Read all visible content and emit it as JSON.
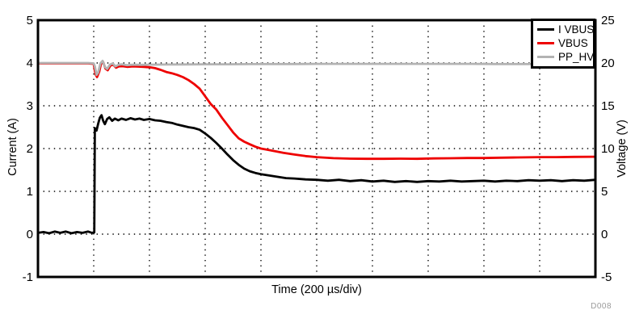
{
  "figure": {
    "watermark": "D008",
    "background": "#ffffff",
    "border_color": "#000000"
  },
  "chart_data": {
    "type": "line",
    "title": "",
    "xlabel": "Time (200 µs/div)",
    "xlim": [
      0,
      10
    ],
    "x_divisions": 10,
    "grid": "dotted",
    "grid_color": "#000000",
    "left_axis": {
      "label": "Current (A)",
      "lim": [
        -1,
        5
      ],
      "ticks": [
        5,
        4,
        3,
        2,
        1,
        0,
        -1
      ]
    },
    "right_axis": {
      "label": "Voltage (V)",
      "lim": [
        -5,
        25
      ],
      "ticks": [
        25,
        20,
        15,
        10,
        5,
        0,
        -5
      ]
    },
    "legend": {
      "position": "top-right",
      "entries": [
        "I VBUS",
        "VBUS",
        "PP_HV"
      ]
    },
    "draw_order": [
      1,
      2,
      0
    ],
    "series": [
      {
        "name": "I VBUS",
        "axis": "left",
        "color": "#000000",
        "points": [
          [
            0,
            0.03
          ],
          [
            0.1,
            0.05
          ],
          [
            0.2,
            0.02
          ],
          [
            0.3,
            0.06
          ],
          [
            0.4,
            0.03
          ],
          [
            0.5,
            0.06
          ],
          [
            0.6,
            0.02
          ],
          [
            0.7,
            0.05
          ],
          [
            0.8,
            0.03
          ],
          [
            0.9,
            0.06
          ],
          [
            0.97,
            0.03
          ],
          [
            1.01,
            0.04
          ],
          [
            1.02,
            2.48
          ],
          [
            1.05,
            2.42
          ],
          [
            1.08,
            2.58
          ],
          [
            1.11,
            2.72
          ],
          [
            1.14,
            2.78
          ],
          [
            1.17,
            2.65
          ],
          [
            1.2,
            2.57
          ],
          [
            1.24,
            2.69
          ],
          [
            1.28,
            2.73
          ],
          [
            1.33,
            2.65
          ],
          [
            1.38,
            2.7
          ],
          [
            1.44,
            2.66
          ],
          [
            1.5,
            2.7
          ],
          [
            1.58,
            2.67
          ],
          [
            1.66,
            2.71
          ],
          [
            1.74,
            2.68
          ],
          [
            1.82,
            2.7
          ],
          [
            1.9,
            2.67
          ],
          [
            2.0,
            2.69
          ],
          [
            2.1,
            2.66
          ],
          [
            2.2,
            2.65
          ],
          [
            2.3,
            2.62
          ],
          [
            2.4,
            2.6
          ],
          [
            2.5,
            2.56
          ],
          [
            2.6,
            2.53
          ],
          [
            2.7,
            2.5
          ],
          [
            2.8,
            2.48
          ],
          [
            2.9,
            2.44
          ],
          [
            3.0,
            2.35
          ],
          [
            3.1,
            2.25
          ],
          [
            3.2,
            2.13
          ],
          [
            3.3,
            2.0
          ],
          [
            3.4,
            1.86
          ],
          [
            3.5,
            1.73
          ],
          [
            3.6,
            1.62
          ],
          [
            3.7,
            1.53
          ],
          [
            3.8,
            1.47
          ],
          [
            3.9,
            1.43
          ],
          [
            4.0,
            1.4
          ],
          [
            4.15,
            1.37
          ],
          [
            4.3,
            1.34
          ],
          [
            4.45,
            1.31
          ],
          [
            4.6,
            1.3
          ],
          [
            4.8,
            1.28
          ],
          [
            5.0,
            1.27
          ],
          [
            5.2,
            1.25
          ],
          [
            5.4,
            1.27
          ],
          [
            5.6,
            1.24
          ],
          [
            5.8,
            1.26
          ],
          [
            6.0,
            1.23
          ],
          [
            6.2,
            1.25
          ],
          [
            6.4,
            1.22
          ],
          [
            6.6,
            1.24
          ],
          [
            6.8,
            1.22
          ],
          [
            7.0,
            1.24
          ],
          [
            7.2,
            1.23
          ],
          [
            7.4,
            1.25
          ],
          [
            7.6,
            1.23
          ],
          [
            7.8,
            1.24
          ],
          [
            8.0,
            1.25
          ],
          [
            8.2,
            1.23
          ],
          [
            8.4,
            1.25
          ],
          [
            8.6,
            1.24
          ],
          [
            8.8,
            1.26
          ],
          [
            9.0,
            1.25
          ],
          [
            9.2,
            1.26
          ],
          [
            9.4,
            1.24
          ],
          [
            9.6,
            1.26
          ],
          [
            9.8,
            1.25
          ],
          [
            10,
            1.27
          ]
        ]
      },
      {
        "name": "VBUS",
        "axis": "right",
        "color": "#ee0000",
        "points": [
          [
            0,
            19.95
          ],
          [
            0.3,
            19.95
          ],
          [
            0.6,
            19.95
          ],
          [
            0.9,
            19.95
          ],
          [
            1.0,
            19.9
          ],
          [
            1.03,
            18.7
          ],
          [
            1.06,
            18.35
          ],
          [
            1.1,
            19.0
          ],
          [
            1.13,
            19.9
          ],
          [
            1.17,
            20.1
          ],
          [
            1.21,
            19.35
          ],
          [
            1.25,
            19.15
          ],
          [
            1.3,
            19.7
          ],
          [
            1.35,
            19.8
          ],
          [
            1.4,
            19.45
          ],
          [
            1.45,
            19.6
          ],
          [
            1.52,
            19.62
          ],
          [
            1.6,
            19.55
          ],
          [
            1.7,
            19.6
          ],
          [
            1.8,
            19.58
          ],
          [
            1.9,
            19.55
          ],
          [
            2.0,
            19.5
          ],
          [
            2.1,
            19.4
          ],
          [
            2.2,
            19.2
          ],
          [
            2.3,
            18.95
          ],
          [
            2.4,
            18.8
          ],
          [
            2.5,
            18.6
          ],
          [
            2.6,
            18.35
          ],
          [
            2.7,
            18.0
          ],
          [
            2.8,
            17.55
          ],
          [
            2.9,
            17.0
          ],
          [
            3.0,
            16.1
          ],
          [
            3.1,
            15.2
          ],
          [
            3.2,
            14.55
          ],
          [
            3.3,
            13.6
          ],
          [
            3.4,
            12.75
          ],
          [
            3.5,
            11.9
          ],
          [
            3.6,
            11.2
          ],
          [
            3.7,
            10.8
          ],
          [
            3.8,
            10.5
          ],
          [
            3.9,
            10.22
          ],
          [
            4.0,
            10.0
          ],
          [
            4.1,
            9.88
          ],
          [
            4.25,
            9.7
          ],
          [
            4.4,
            9.5
          ],
          [
            4.6,
            9.3
          ],
          [
            4.8,
            9.12
          ],
          [
            5.0,
            9.0
          ],
          [
            5.3,
            8.88
          ],
          [
            5.6,
            8.82
          ],
          [
            5.9,
            8.8
          ],
          [
            6.2,
            8.8
          ],
          [
            6.5,
            8.82
          ],
          [
            6.8,
            8.8
          ],
          [
            7.1,
            8.85
          ],
          [
            7.4,
            8.87
          ],
          [
            7.7,
            8.9
          ],
          [
            8.0,
            8.9
          ],
          [
            8.3,
            8.93
          ],
          [
            8.6,
            8.96
          ],
          [
            9.0,
            9.0
          ],
          [
            9.3,
            9.0
          ],
          [
            9.6,
            9.03
          ],
          [
            10,
            9.05
          ]
        ]
      },
      {
        "name": "PP_HV",
        "axis": "right",
        "color": "#b3b3b3",
        "points": [
          [
            0,
            20.0
          ],
          [
            0.3,
            20.0
          ],
          [
            0.6,
            20.0
          ],
          [
            0.9,
            20.0
          ],
          [
            1.0,
            19.95
          ],
          [
            1.02,
            19.6
          ],
          [
            1.05,
            18.6
          ],
          [
            1.08,
            18.9
          ],
          [
            1.12,
            19.95
          ],
          [
            1.16,
            20.25
          ],
          [
            1.2,
            19.55
          ],
          [
            1.24,
            19.3
          ],
          [
            1.29,
            19.8
          ],
          [
            1.34,
            19.95
          ],
          [
            1.39,
            19.6
          ],
          [
            1.44,
            19.78
          ],
          [
            1.5,
            19.85
          ],
          [
            1.6,
            19.75
          ],
          [
            1.7,
            19.8
          ],
          [
            1.85,
            19.78
          ],
          [
            2.0,
            19.8
          ],
          [
            2.3,
            19.82
          ],
          [
            2.6,
            19.83
          ],
          [
            3.0,
            19.85
          ],
          [
            3.4,
            19.85
          ],
          [
            3.8,
            19.87
          ],
          [
            4.2,
            19.88
          ],
          [
            4.6,
            19.88
          ],
          [
            5.0,
            19.9
          ],
          [
            5.4,
            19.9
          ],
          [
            5.8,
            19.9
          ],
          [
            6.2,
            19.9
          ],
          [
            6.6,
            19.9
          ],
          [
            7.0,
            19.9
          ],
          [
            7.4,
            19.9
          ],
          [
            7.8,
            19.9
          ],
          [
            8.2,
            19.88
          ],
          [
            8.6,
            19.88
          ],
          [
            9.0,
            19.87
          ],
          [
            9.3,
            19.85
          ],
          [
            9.6,
            19.82
          ],
          [
            10,
            19.8
          ]
        ]
      }
    ]
  }
}
